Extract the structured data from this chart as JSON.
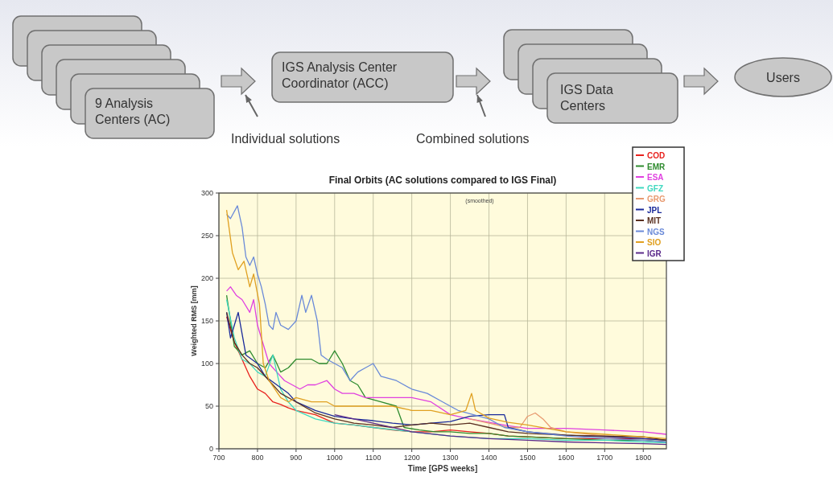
{
  "chart_data": {
    "type": "line",
    "title": "Final Orbits (AC solutions compared to IGS Final)",
    "subtitle": "(smoothed)",
    "xlabel": "Time [GPS weeks]",
    "ylabel": "Weighted RMS [mm]",
    "annotations": [
      "9 Analysis\nCenters (AC)",
      "IGS Analysis Center\nCoordinator (ACC)",
      "IGS Data\nCenters",
      "Users",
      "Individual solutions",
      "Combined solutions"
    ],
    "xlim": [
      700,
      1860
    ],
    "xticks": [
      700,
      800,
      900,
      1000,
      1100,
      1200,
      1300,
      1400,
      1500,
      1600,
      1700,
      1800
    ],
    "ylim": [
      0,
      300
    ],
    "yticks": [
      0,
      50,
      100,
      150,
      200,
      250,
      300
    ],
    "grid": true,
    "legend": "top right",
    "marker": "none",
    "line_style": "solid",
    "series": [
      {
        "name": "COD",
        "color": "#e8221e",
        "x": [
          720,
          740,
          760,
          780,
          800,
          820,
          840,
          860,
          880,
          900,
          950,
          1000,
          1050,
          1100,
          1150,
          1200,
          1250,
          1300,
          1350,
          1400,
          1450,
          1500,
          1600,
          1700,
          1800,
          1860
        ],
        "values": [
          155,
          125,
          105,
          85,
          70,
          65,
          55,
          52,
          48,
          45,
          40,
          30,
          28,
          25,
          22,
          20,
          20,
          22,
          20,
          18,
          15,
          14,
          12,
          12,
          12,
          10
        ]
      },
      {
        "name": "EMR",
        "color": "#2e8b2e",
        "x": [
          720,
          740,
          760,
          780,
          800,
          820,
          840,
          860,
          880,
          900,
          940,
          960,
          980,
          1000,
          1020,
          1040,
          1060,
          1080,
          1120,
          1160,
          1180,
          1220,
          1260,
          1300,
          1350,
          1400,
          1450,
          1500,
          1600,
          1700,
          1800,
          1860
        ],
        "values": [
          180,
          120,
          110,
          115,
          100,
          95,
          110,
          90,
          95,
          105,
          105,
          100,
          100,
          115,
          100,
          80,
          75,
          60,
          55,
          50,
          25,
          22,
          20,
          20,
          18,
          18,
          15,
          14,
          12,
          10,
          10,
          8
        ]
      },
      {
        "name": "ESA",
        "color": "#e040e0",
        "x": [
          720,
          730,
          745,
          760,
          780,
          790,
          800,
          810,
          830,
          850,
          870,
          890,
          910,
          930,
          950,
          980,
          1000,
          1020,
          1050,
          1080,
          1100,
          1150,
          1200,
          1250,
          1300,
          1350,
          1400,
          1450,
          1500,
          1600,
          1700,
          1800,
          1860
        ],
        "values": [
          185,
          190,
          180,
          175,
          160,
          175,
          145,
          130,
          100,
          90,
          80,
          75,
          70,
          75,
          75,
          80,
          70,
          65,
          65,
          60,
          60,
          60,
          60,
          55,
          40,
          35,
          31,
          27,
          24,
          24,
          22,
          20,
          17
        ]
      },
      {
        "name": "GFZ",
        "color": "#40d8c0",
        "x": [
          720,
          740,
          760,
          780,
          800,
          820,
          840,
          860,
          880,
          900,
          950,
          1000,
          1050,
          1100,
          1200,
          1300,
          1400,
          1500,
          1600,
          1700,
          1800,
          1860
        ],
        "values": [
          175,
          130,
          105,
          100,
          90,
          85,
          110,
          70,
          55,
          45,
          35,
          30,
          28,
          25,
          20,
          15,
          12,
          12,
          10,
          10,
          8,
          7
        ]
      },
      {
        "name": "GRG",
        "color": "#e89a70",
        "x": [
          1350,
          1400,
          1450,
          1480,
          1500,
          1520,
          1540,
          1560,
          1600,
          1700,
          1800,
          1860
        ],
        "values": [
          35,
          30,
          25,
          25,
          38,
          42,
          35,
          25,
          20,
          15,
          12,
          10
        ]
      },
      {
        "name": "JPL",
        "color": "#1a2a9a",
        "x": [
          720,
          730,
          750,
          770,
          800,
          820,
          850,
          880,
          900,
          950,
          1000,
          1050,
          1100,
          1150,
          1200,
          1250,
          1300,
          1350,
          1400,
          1440,
          1450,
          1500,
          1600,
          1700,
          1800,
          1860
        ],
        "values": [
          160,
          130,
          160,
          110,
          100,
          85,
          75,
          65,
          55,
          45,
          38,
          35,
          33,
          30,
          28,
          30,
          32,
          38,
          40,
          40,
          25,
          20,
          16,
          14,
          12,
          10
        ]
      },
      {
        "name": "MIT",
        "color": "#5a3020",
        "x": [
          720,
          740,
          760,
          780,
          800,
          830,
          860,
          900,
          950,
          1000,
          1050,
          1100,
          1150,
          1200,
          1250,
          1300,
          1350,
          1400,
          1450,
          1500,
          1600,
          1700,
          1800,
          1860
        ],
        "values": [
          160,
          125,
          110,
          100,
          95,
          80,
          65,
          55,
          42,
          35,
          30,
          28,
          25,
          28,
          30,
          28,
          30,
          25,
          20,
          18,
          16,
          15,
          14,
          10
        ]
      },
      {
        "name": "NGS",
        "color": "#6a8ad8",
        "x": [
          720,
          730,
          748,
          760,
          770,
          780,
          790,
          800,
          810,
          820,
          830,
          840,
          848,
          860,
          880,
          900,
          915,
          925,
          940,
          955,
          965,
          980,
          1000,
          1020,
          1040,
          1060,
          1080,
          1100,
          1120,
          1160,
          1200,
          1240,
          1280,
          1320,
          1360,
          1400,
          1440,
          1500,
          1600,
          1700,
          1800,
          1860
        ],
        "values": [
          275,
          270,
          285,
          260,
          225,
          215,
          225,
          205,
          190,
          170,
          145,
          140,
          160,
          145,
          140,
          150,
          180,
          160,
          180,
          150,
          110,
          105,
          100,
          95,
          80,
          90,
          95,
          100,
          85,
          80,
          70,
          65,
          55,
          45,
          40,
          35,
          25,
          20,
          15,
          12,
          10,
          8
        ]
      },
      {
        "name": "SIO",
        "color": "#e0a020",
        "x": [
          720,
          735,
          750,
          765,
          780,
          790,
          805,
          815,
          830,
          860,
          880,
          900,
          940,
          980,
          1000,
          1050,
          1100,
          1150,
          1200,
          1250,
          1300,
          1340,
          1355,
          1365,
          1400,
          1450,
          1500,
          1600,
          1700,
          1800,
          1860
        ],
        "values": [
          280,
          230,
          210,
          220,
          190,
          205,
          170,
          100,
          80,
          60,
          55,
          60,
          55,
          55,
          50,
          50,
          50,
          50,
          45,
          45,
          40,
          45,
          65,
          45,
          36,
          31,
          28,
          20,
          17,
          14,
          12
        ]
      },
      {
        "name": "IGR",
        "color": "#5a2a8a",
        "x": [
          1000,
          1050,
          1100,
          1200,
          1300,
          1400,
          1500,
          1600,
          1700,
          1800,
          1860
        ],
        "values": [
          40,
          35,
          30,
          20,
          15,
          12,
          10,
          8,
          7,
          6,
          5
        ]
      }
    ]
  }
}
